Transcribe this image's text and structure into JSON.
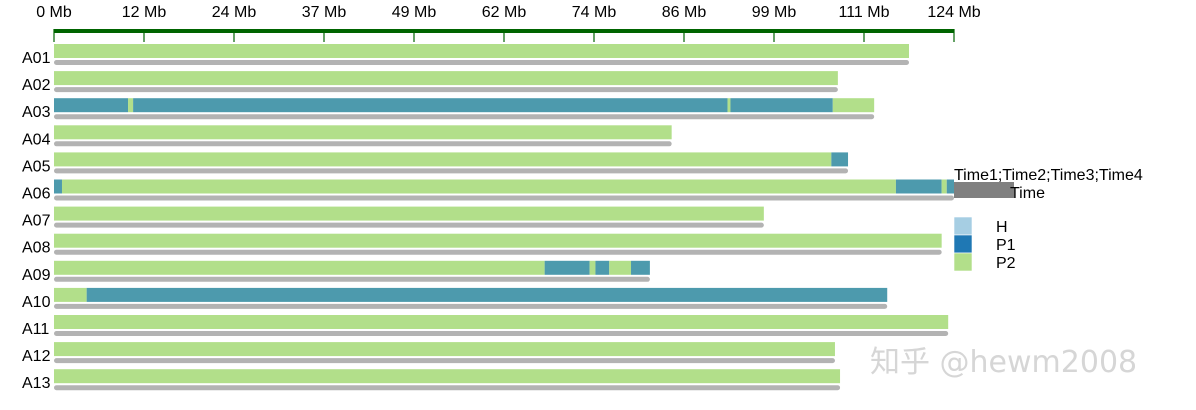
{
  "chart_data": {
    "type": "chromosome-ideogram",
    "xlim": [
      0,
      124
    ],
    "axis_ticks": [
      {
        "value": 0,
        "label": "0 Mb"
      },
      {
        "value": 12.4,
        "label": "12 Mb"
      },
      {
        "value": 24.8,
        "label": "24 Mb"
      },
      {
        "value": 37.2,
        "label": "37 Mb"
      },
      {
        "value": 49.6,
        "label": "49 Mb"
      },
      {
        "value": 62.0,
        "label": "62 Mb"
      },
      {
        "value": 74.4,
        "label": "74 Mb"
      },
      {
        "value": 86.8,
        "label": "86 Mb"
      },
      {
        "value": 99.2,
        "label": "99 Mb"
      },
      {
        "value": 111.6,
        "label": "111 Mb"
      },
      {
        "value": 124.0,
        "label": "124 Mb"
      }
    ],
    "chromosomes": [
      {
        "name": "A01",
        "length": 117.8,
        "segments": [
          {
            "start": 0,
            "end": 117.8,
            "type": "P2"
          }
        ]
      },
      {
        "name": "A02",
        "length": 108.0,
        "segments": [
          {
            "start": 0,
            "end": 108.0,
            "type": "P2"
          }
        ]
      },
      {
        "name": "A03",
        "length": 113.0,
        "segments": [
          {
            "start": 0,
            "end": 10.2,
            "type": "P1"
          },
          {
            "start": 10.2,
            "end": 10.9,
            "type": "P2"
          },
          {
            "start": 10.9,
            "end": 92.8,
            "type": "P1"
          },
          {
            "start": 92.8,
            "end": 93.2,
            "type": "P2"
          },
          {
            "start": 93.2,
            "end": 107.3,
            "type": "P1"
          },
          {
            "start": 107.3,
            "end": 113.0,
            "type": "P2"
          }
        ]
      },
      {
        "name": "A04",
        "length": 85.1,
        "segments": [
          {
            "start": 0,
            "end": 85.1,
            "type": "P2"
          }
        ]
      },
      {
        "name": "A05",
        "length": 109.4,
        "segments": [
          {
            "start": 0,
            "end": 107.1,
            "type": "P2"
          },
          {
            "start": 107.1,
            "end": 109.4,
            "type": "P1"
          }
        ]
      },
      {
        "name": "A06",
        "length": 124.0,
        "segments": [
          {
            "start": 0,
            "end": 1.1,
            "type": "P1"
          },
          {
            "start": 1.1,
            "end": 116.0,
            "type": "P2"
          },
          {
            "start": 116.0,
            "end": 122.3,
            "type": "P1"
          },
          {
            "start": 122.3,
            "end": 123.0,
            "type": "P2"
          },
          {
            "start": 123.0,
            "end": 124.0,
            "type": "P1"
          }
        ]
      },
      {
        "name": "A07",
        "length": 97.8,
        "segments": [
          {
            "start": 0,
            "end": 97.8,
            "type": "P2"
          }
        ]
      },
      {
        "name": "A08",
        "length": 122.3,
        "segments": [
          {
            "start": 0,
            "end": 122.3,
            "type": "P2"
          }
        ]
      },
      {
        "name": "A09",
        "length": 82.1,
        "segments": [
          {
            "start": 0,
            "end": 67.6,
            "type": "P2"
          },
          {
            "start": 67.6,
            "end": 73.8,
            "type": "P1"
          },
          {
            "start": 73.8,
            "end": 74.6,
            "type": "P2"
          },
          {
            "start": 74.6,
            "end": 76.5,
            "type": "P1"
          },
          {
            "start": 76.5,
            "end": 79.5,
            "type": "P2"
          },
          {
            "start": 79.5,
            "end": 82.1,
            "type": "P1"
          }
        ]
      },
      {
        "name": "A10",
        "length": 114.8,
        "segments": [
          {
            "start": 0,
            "end": 4.5,
            "type": "P2"
          },
          {
            "start": 4.5,
            "end": 114.8,
            "type": "P1"
          }
        ]
      },
      {
        "name": "A11",
        "length": 123.2,
        "segments": [
          {
            "start": 0,
            "end": 123.2,
            "type": "P2"
          }
        ]
      },
      {
        "name": "A12",
        "length": 107.6,
        "segments": [
          {
            "start": 0,
            "end": 107.6,
            "type": "P2"
          }
        ]
      },
      {
        "name": "A13",
        "length": 108.3,
        "segments": [
          {
            "start": 0,
            "end": 108.3,
            "type": "P2"
          }
        ]
      }
    ],
    "time_track": {
      "title": "Time1;Time2;Time3;Time4",
      "label": "Time",
      "color": "#808080"
    },
    "legend": [
      {
        "label": "H",
        "color": "#a6cee3"
      },
      {
        "label": "P1",
        "color": "#1f78b4"
      },
      {
        "label": "P2",
        "color": "#b2df8a"
      }
    ],
    "colors": {
      "axis": "#006400",
      "P1_bar": "#4d9aad",
      "P2_bar": "#b2df8a",
      "under_track": "#b3b3b3"
    }
  },
  "watermark": "知乎 @hewm2008"
}
